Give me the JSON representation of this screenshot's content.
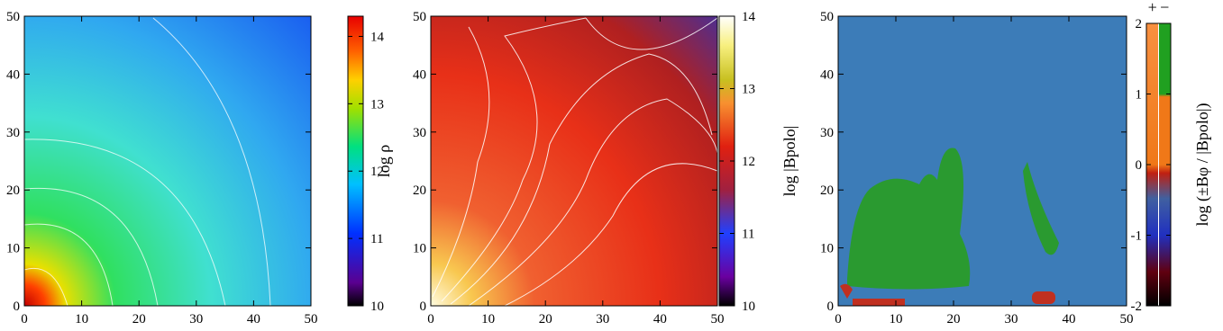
{
  "chart_data": [
    {
      "type": "heatmap",
      "xlim": [
        0,
        50
      ],
      "ylim": [
        0,
        50
      ],
      "xticks": [
        0,
        10,
        20,
        30,
        40,
        50
      ],
      "yticks": [
        0,
        10,
        20,
        30,
        40,
        50
      ],
      "colorbar": {
        "label": "log ρ",
        "lim": [
          10,
          14.3
        ],
        "ticks": [
          10,
          11,
          12,
          13,
          14
        ]
      }
    },
    {
      "type": "heatmap",
      "xlim": [
        0,
        50
      ],
      "ylim": [
        0,
        50
      ],
      "xticks": [
        0,
        10,
        20,
        30,
        40,
        50
      ],
      "yticks": [
        0,
        10,
        20,
        30,
        40,
        50
      ],
      "colorbar": {
        "label": "log |Bpolo|",
        "lim": [
          10,
          14
        ],
        "ticks": [
          10,
          11,
          12,
          13,
          14
        ]
      }
    },
    {
      "type": "heatmap",
      "xlim": [
        0,
        50
      ],
      "ylim": [
        0,
        50
      ],
      "xticks": [
        0,
        10,
        20,
        30,
        40,
        50
      ],
      "yticks": [
        0,
        10,
        20,
        30,
        40,
        50
      ],
      "colorbar": {
        "label": "log (±Bφ / |Bpolo|)",
        "lim": [
          -2,
          2
        ],
        "ticks": [
          -2,
          -1,
          0,
          1,
          2
        ],
        "columns": [
          "+",
          "−"
        ]
      }
    }
  ]
}
